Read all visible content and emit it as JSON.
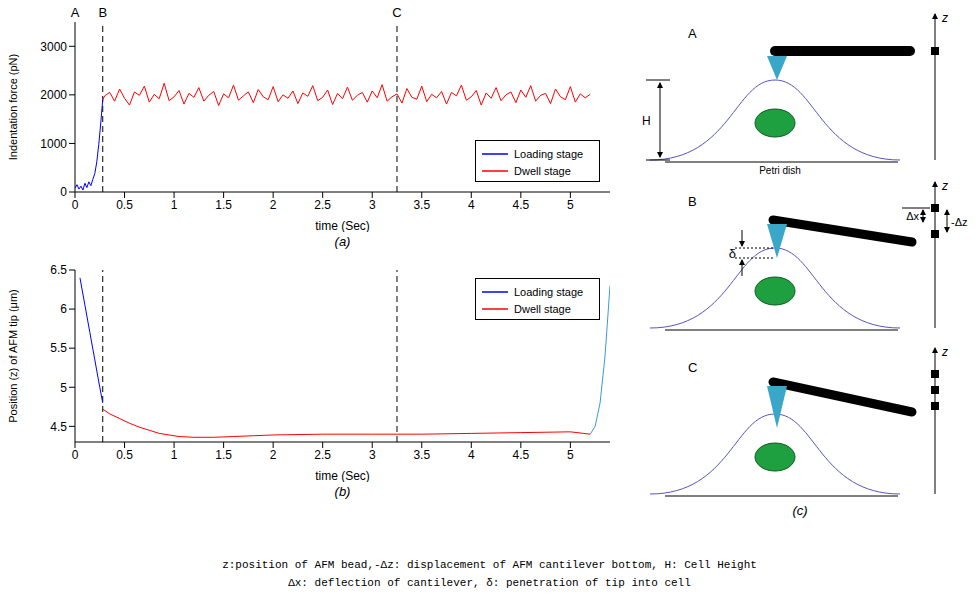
{
  "chart_data": [
    {
      "type": "line",
      "caption": "(a)",
      "x_label": "time (Sec)",
      "y_label": "Indentation force (pN)",
      "xlim": [
        0,
        5.4
      ],
      "xticks": [
        0,
        0.5,
        1,
        1.5,
        2,
        2.5,
        3,
        3.5,
        4,
        4.5,
        5
      ],
      "ylim": [
        0,
        3500
      ],
      "yticks": [
        0,
        1000,
        2000,
        3000
      ],
      "legend": "lower right",
      "annotations": [
        {
          "text": "A",
          "x": 0
        },
        {
          "text": "B",
          "x": 0.28,
          "line_style": "dashed"
        },
        {
          "text": "C",
          "x": 3.25,
          "line_style": "dashed"
        }
      ],
      "series": [
        {
          "name": "Loading stage",
          "color": "#0000ff",
          "x": [
            0,
            0.02,
            0.04,
            0.06,
            0.08,
            0.1,
            0.12,
            0.14,
            0.16,
            0.18,
            0.2,
            0.22,
            0.24,
            0.26,
            0.28
          ],
          "values": [
            80,
            150,
            60,
            120,
            40,
            180,
            90,
            210,
            130,
            260,
            380,
            620,
            980,
            1420,
            1900
          ]
        },
        {
          "name": "Dwell stage",
          "color": "#ff0000",
          "x": [
            0.28,
            0.3,
            0.35,
            0.4,
            0.45,
            0.5,
            0.55,
            0.6,
            0.65,
            0.7,
            0.75,
            0.8,
            0.85,
            0.9,
            0.95,
            1,
            1.05,
            1.1,
            1.15,
            1.2,
            1.25,
            1.3,
            1.35,
            1.4,
            1.45,
            1.5,
            1.55,
            1.6,
            1.65,
            1.7,
            1.75,
            1.8,
            1.85,
            1.9,
            1.95,
            2,
            2.05,
            2.1,
            2.15,
            2.2,
            2.25,
            2.3,
            2.35,
            2.4,
            2.45,
            2.5,
            2.55,
            2.6,
            2.65,
            2.7,
            2.75,
            2.8,
            2.85,
            2.9,
            2.95,
            3,
            3.05,
            3.1,
            3.15,
            3.2,
            3.25,
            3.3,
            3.35,
            3.4,
            3.45,
            3.5,
            3.55,
            3.6,
            3.65,
            3.7,
            3.75,
            3.8,
            3.85,
            3.9,
            3.95,
            4,
            4.05,
            4.1,
            4.15,
            4.2,
            4.25,
            4.3,
            4.35,
            4.4,
            4.45,
            4.5,
            4.55,
            4.6,
            4.65,
            4.7,
            4.75,
            4.8,
            4.85,
            4.9,
            4.95,
            5,
            5.05,
            5.1,
            5.15,
            5.2
          ],
          "values": [
            1900,
            1980,
            2050,
            1870,
            2120,
            1930,
            1790,
            2060,
            1990,
            2180,
            1850,
            2010,
            1920,
            2240,
            1880,
            1960,
            2090,
            1810,
            2030,
            1950,
            2150,
            1870,
            1990,
            2070,
            1780,
            2020,
            1940,
            2200,
            1890,
            1980,
            2060,
            1840,
            2110,
            1960,
            1900,
            2170,
            1860,
            2000,
            1930,
            2080,
            1820,
            2040,
            1970,
            2190,
            1880,
            1950,
            2100,
            1800,
            2030,
            1920,
            2160,
            1890,
            1990,
            2050,
            1850,
            2080,
            1940,
            2210,
            1870,
            1960,
            2020,
            1830,
            2130,
            1950,
            1910,
            2180,
            1860,
            2010,
            1940,
            2070,
            1810,
            2050,
            1980,
            2200,
            1890,
            1960,
            2090,
            1790,
            2040,
            1930,
            2150,
            1880,
            2000,
            2060,
            1840,
            2100,
            1950,
            2190,
            1870,
            1990,
            2030,
            1820,
            2120,
            1960,
            1900,
            2170,
            1850,
            2020,
            1940,
            2010
          ]
        }
      ]
    },
    {
      "type": "line",
      "caption": "(b)",
      "x_label": "time (Sec)",
      "y_label": "Position (z) of AFM tip (μm)",
      "xlim": [
        0,
        5.4
      ],
      "xticks": [
        0,
        0.5,
        1,
        1.5,
        2,
        2.5,
        3,
        3.5,
        4,
        4.5,
        5
      ],
      "ylim": [
        4.3,
        6.5
      ],
      "yticks": [
        4.5,
        5,
        5.5,
        6,
        6.5
      ],
      "legend": "upper right",
      "annotations": [
        {
          "x": 0.28,
          "line_style": "dashed"
        },
        {
          "x": 3.25,
          "line_style": "dashed"
        }
      ],
      "series": [
        {
          "name": "Loading stage",
          "color": "#0000ff",
          "x": [
            0.05,
            0.1,
            0.15,
            0.2,
            0.25,
            0.28
          ],
          "values": [
            6.4,
            6.05,
            5.7,
            5.35,
            5.0,
            4.8
          ]
        },
        {
          "name": "Dwell stage",
          "color": "#ff0000",
          "x": [
            0.28,
            0.35,
            0.45,
            0.55,
            0.65,
            0.75,
            0.85,
            0.95,
            1.05,
            1.2,
            1.4,
            1.6,
            1.8,
            2,
            2.5,
            3,
            3.5,
            4,
            4.5,
            5,
            5.2
          ],
          "values": [
            4.72,
            4.66,
            4.6,
            4.54,
            4.49,
            4.45,
            4.41,
            4.39,
            4.37,
            4.36,
            4.36,
            4.37,
            4.38,
            4.39,
            4.4,
            4.4,
            4.4,
            4.41,
            4.42,
            4.43,
            4.4
          ]
        },
        {
          "color": "#3d9ad6",
          "x": [
            5.2,
            5.25,
            5.3,
            5.35,
            5.4
          ],
          "values": [
            4.4,
            4.5,
            4.8,
            5.4,
            6.3
          ]
        }
      ]
    }
  ],
  "diagram": {
    "caption": "(c)",
    "panels": [
      {
        "label": "A",
        "height_label": "H",
        "dish_label": "Petri dish",
        "axis_label": "z"
      },
      {
        "label": "B",
        "penetration_label": "δ",
        "deflection_label": "Δx",
        "displacement_label": "-Δz",
        "axis_label": "z"
      },
      {
        "label": "C",
        "axis_label": "z"
      }
    ],
    "footnote": [
      "z:position of AFM bead,-Δz: displacement of AFM cantilever bottom, H: Cell Height",
      "Δx: deflection of cantilever, δ: penetration of tip into cell"
    ]
  }
}
